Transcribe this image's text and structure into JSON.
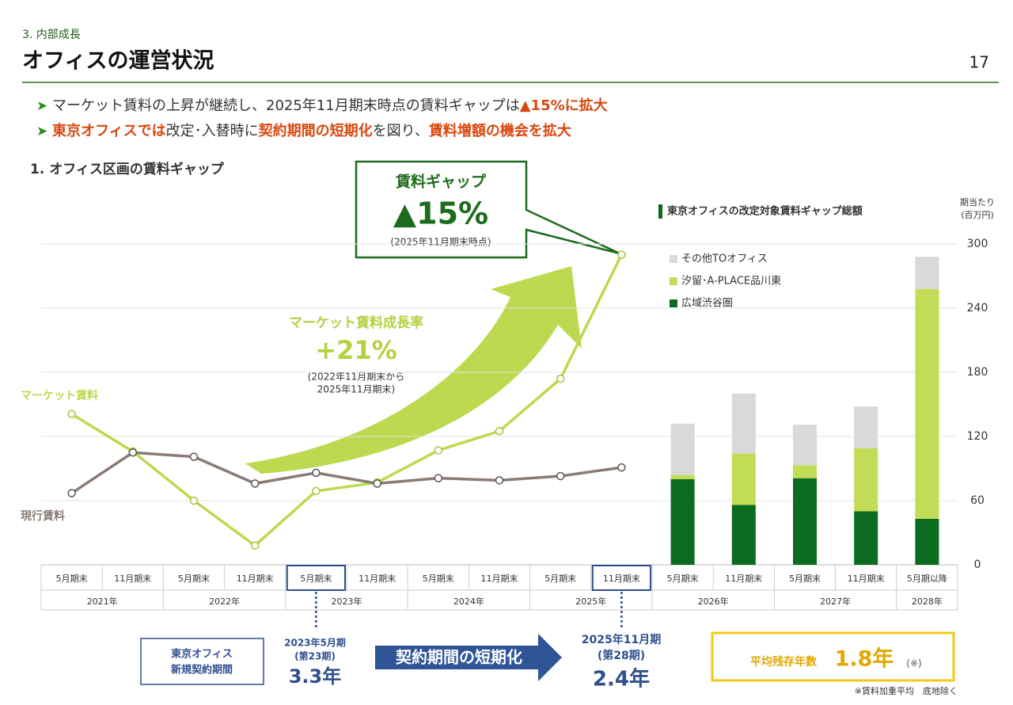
{
  "header": {
    "section": "3. 内部成長",
    "title": "オフィスの運営状況",
    "page": "17"
  },
  "bullets": [
    [
      {
        "text": "マーケット賃料の上昇が継続し、2025年11月期末時点の賃料ギャップは"
      },
      {
        "text": "▲15%に拡大",
        "em": true
      }
    ],
    [
      {
        "text": "東京オフィスでは",
        "em": true
      },
      {
        "text": "改定･入替時に"
      },
      {
        "text": "契約期間の短期化",
        "em": true
      },
      {
        "text": "を図り、"
      },
      {
        "text": "賃料増額の機会を拡大",
        "em": true
      }
    ]
  ],
  "section_title": "1. オフィス区画の賃料ギャップ",
  "gap_callout": {
    "title": "賃料ギャップ",
    "value": "▲15%",
    "note": "(2025年11月期末時点)"
  },
  "growth_callout": {
    "title": "マーケット賃料成長率",
    "value": "+21%",
    "note": [
      "(2022年11月期末から",
      "2025年11月期末)"
    ]
  },
  "chart_data": [
    {
      "type": "line",
      "categories": [
        "5月期末",
        "11月期末",
        "5月期末",
        "11月期末",
        "5月期末",
        "11月期末",
        "5月期末",
        "11月期末",
        "5月期末",
        "11月期末"
      ],
      "years": [
        "2021年",
        "2022年",
        "2023年",
        "2024年",
        "2025年"
      ],
      "series": [
        {
          "name": "マーケット賃料",
          "color": "#bcd94f",
          "values": [
            141,
            106,
            60,
            18,
            69,
            77,
            107,
            125,
            174,
            290
          ]
        },
        {
          "name": "現行賃料",
          "color": "#8c7b75",
          "values": [
            67,
            105,
            101,
            76,
            86,
            76,
            81,
            79,
            83,
            91
          ]
        }
      ]
    },
    {
      "type": "bar",
      "stacked": true,
      "title": "東京オフィスの改定対象賃料ギャップ総額",
      "y_label": [
        "期当たり",
        "(百万円)"
      ],
      "categories": [
        "5月期末",
        "11月期末",
        "5月期末",
        "11月期末",
        "5月期以降"
      ],
      "years": [
        "2026年",
        "2027年",
        "2028年"
      ],
      "ylim": [
        0,
        300
      ],
      "yticks": [
        0,
        60,
        120,
        180,
        240,
        300
      ],
      "grid": true,
      "series": [
        {
          "name": "広域渋谷圏",
          "color": "#0b6b1f",
          "values": [
            80,
            56,
            81,
            50,
            43
          ]
        },
        {
          "name": "汐留･A-PLACE品川東",
          "color": "#c3dc57",
          "values": [
            4,
            48,
            12,
            59,
            215
          ]
        },
        {
          "name": "その他TOオフィス",
          "color": "#d9d9d9",
          "values": [
            48,
            56,
            38,
            39,
            30
          ]
        }
      ]
    }
  ],
  "contract": {
    "label": [
      "東京オフィス",
      "新規契約期間"
    ],
    "before": {
      "period": [
        "2023年5月期",
        "(第23期)"
      ],
      "value": "3.3年"
    },
    "arrow": "契約期間の短期化",
    "after": {
      "period": [
        "2025年11月期",
        "(第28期)"
      ],
      "value": "2.4年"
    },
    "remaining": {
      "label": "平均残存年数",
      "value": "1.8年",
      "mark": "(※)"
    },
    "footnote": "※賃料加重平均　底地除く"
  }
}
